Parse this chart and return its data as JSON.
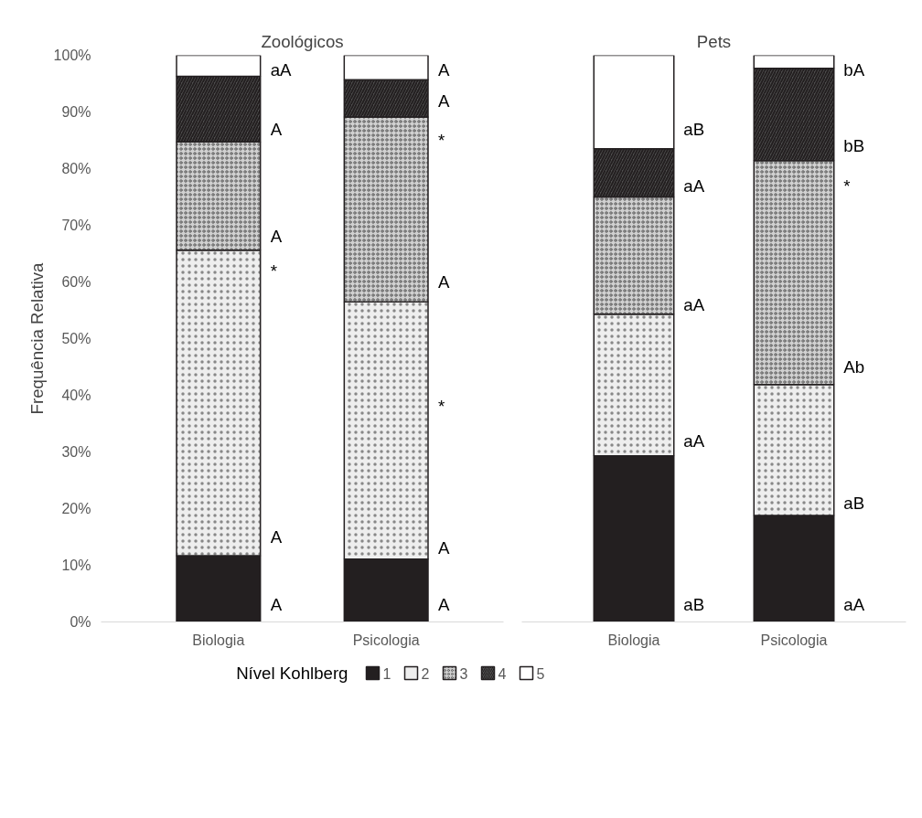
{
  "chart_data": [
    {
      "type": "bar",
      "title": "Zoológicos",
      "ylabel": "Frequência Relativa",
      "legend_title": "Nível Kohlberg",
      "legend": "bottom",
      "stacked": true,
      "grid": false,
      "categories": [
        "Biologia",
        "Psicologia"
      ],
      "ylim": [
        0,
        100
      ],
      "yticks": [
        {
          "value": 0,
          "label": "0%"
        },
        {
          "value": 10,
          "label": "10%"
        },
        {
          "value": 20,
          "label": "20%"
        },
        {
          "value": 30,
          "label": "30%"
        },
        {
          "value": 40,
          "label": "40%"
        },
        {
          "value": 50,
          "label": "50%"
        },
        {
          "value": 60,
          "label": "60%"
        },
        {
          "value": 70,
          "label": "70%"
        },
        {
          "value": 80,
          "label": "80%"
        },
        {
          "value": 90,
          "label": "90%"
        },
        {
          "value": 100,
          "label": "100%"
        }
      ],
      "series": [
        {
          "name": "1",
          "color": "#231f20",
          "values": [
            11.7,
            11.1
          ]
        },
        {
          "name": "2",
          "color": "#eeeeee",
          "values": [
            53.9,
            45.4
          ]
        },
        {
          "name": "3",
          "color": "#d0d0d0",
          "values": [
            19.1,
            32.6
          ]
        },
        {
          "name": "4",
          "color": "#505050",
          "values": [
            11.6,
            6.6
          ]
        },
        {
          "name": "5",
          "color": "#ffffff",
          "values": [
            3.7,
            4.3
          ]
        }
      ],
      "annotations": [
        "A",
        "A",
        "*",
        "A",
        "A",
        "aA",
        "A",
        "A",
        "*",
        "A",
        "*",
        "A",
        "A"
      ]
    },
    {
      "type": "bar",
      "title": "Pets",
      "stacked": true,
      "grid": false,
      "tick_labels": "x",
      "categories": [
        "Biologia",
        "Psicologia"
      ],
      "ylim": [
        0,
        100
      ],
      "series": [
        {
          "color": "#231f20",
          "values": [
            29.3,
            18.8
          ]
        },
        {
          "color": "#eeeeee",
          "values": [
            25.0,
            23.1
          ]
        },
        {
          "color": "#d0d0d0",
          "values": [
            20.7,
            39.5
          ]
        },
        {
          "color": "#505050",
          "values": [
            8.5,
            16.3
          ]
        },
        {
          "color": "#ffffff",
          "values": [
            16.5,
            2.3
          ]
        }
      ],
      "annotations": [
        "aB",
        "aA",
        "aA",
        "aA",
        "aB",
        "aA",
        "aB",
        "Ab",
        "*",
        "bB",
        "bA"
      ]
    }
  ]
}
